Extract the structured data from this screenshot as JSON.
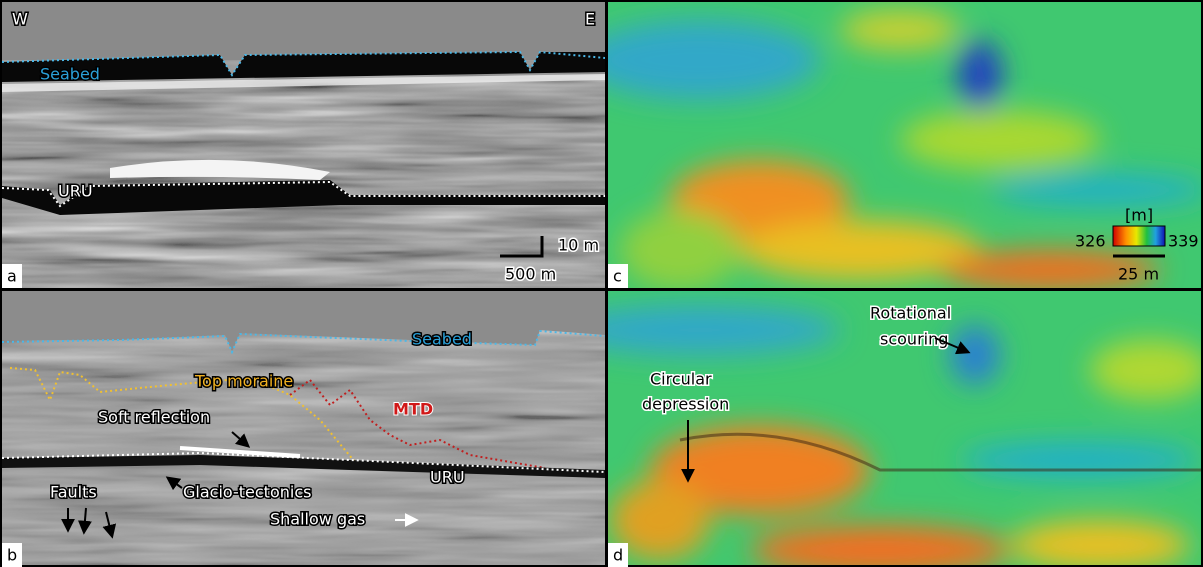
{
  "panels": {
    "a": {
      "label": "a",
      "west": "W",
      "east": "E",
      "seabed": "Seabed",
      "uru": "URU",
      "scale_vertical": "10 m",
      "scale_horizontal": "500 m"
    },
    "b": {
      "label": "b",
      "seabed": "Seabed",
      "top_moraine": "Top moraine",
      "mtd": "MTD",
      "soft_reflection": "Soft reflection",
      "uru": "URU",
      "glacio_tectonics": "Glacio-tectonics",
      "faults": "Faults",
      "shallow_gas": "Shallow gas"
    },
    "c": {
      "label": "c",
      "colorbar": {
        "unit": "[m]",
        "min": 326,
        "max": 339
      },
      "scale": "25 m"
    },
    "d": {
      "label": "d",
      "rotational_scouring": [
        "Rotational",
        "scouring"
      ],
      "circular_depression": [
        "Circular",
        "depression"
      ]
    }
  }
}
